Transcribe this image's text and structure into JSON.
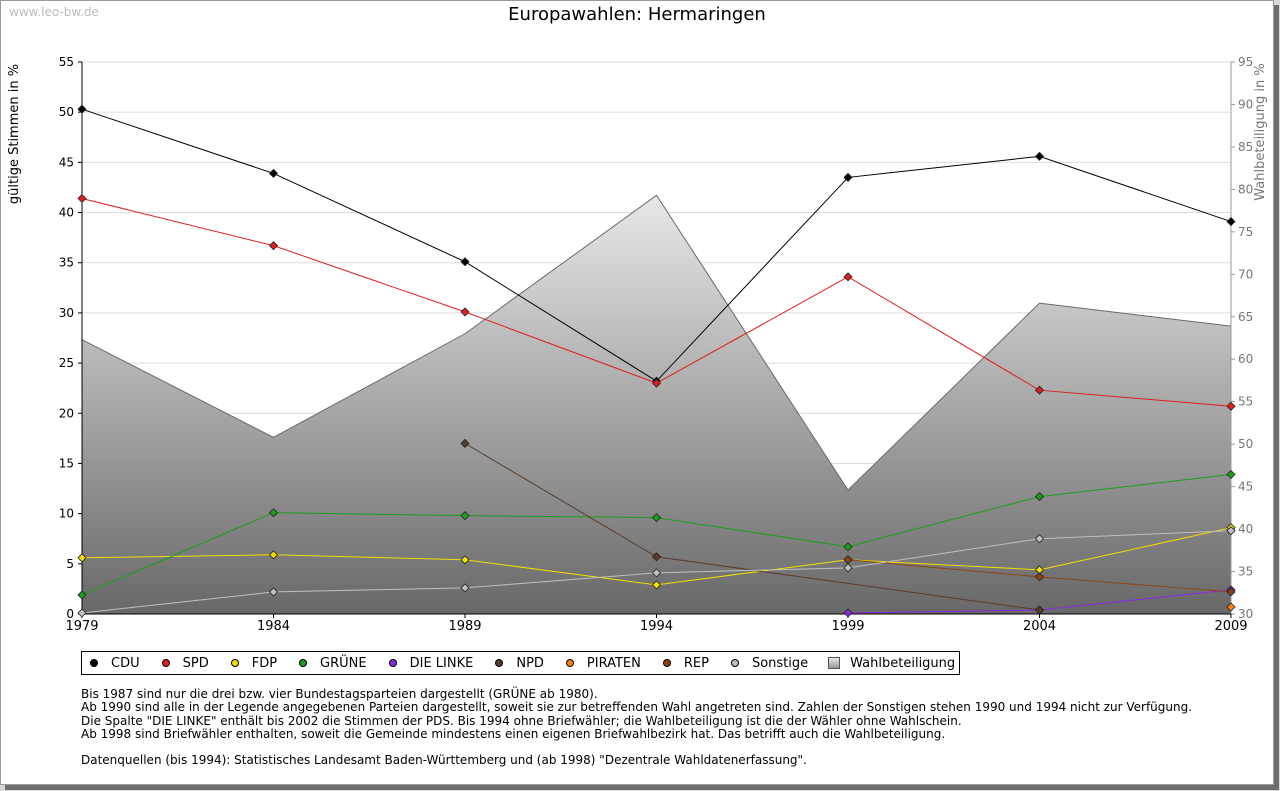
{
  "watermark": "www.leo-bw.de",
  "chart_data": {
    "type": "line",
    "title": "Europawahlen: Hermaringen",
    "ylabel": "gültige Stimmen in %",
    "y2label": "Wahlbeteiligung in %",
    "xlabel": "",
    "x": [
      1979,
      1984,
      1989,
      1994,
      1999,
      2004,
      2009
    ],
    "ylim": [
      0,
      55
    ],
    "y2lim": [
      30,
      95
    ],
    "yticks": [
      0,
      5,
      10,
      15,
      20,
      25,
      30,
      35,
      40,
      45,
      50,
      55
    ],
    "y2ticks": [
      30,
      35,
      40,
      45,
      50,
      55,
      60,
      65,
      70,
      75,
      80,
      85,
      90,
      95
    ],
    "grid": true,
    "legend_position": "bottom",
    "series": [
      {
        "name": "CDU",
        "color": "#000000",
        "values": [
          50.3,
          43.9,
          35.1,
          23.2,
          43.5,
          45.6,
          39.1
        ]
      },
      {
        "name": "SPD",
        "color": "#e11d1d",
        "values": [
          41.4,
          36.7,
          30.1,
          23.0,
          33.6,
          22.3,
          20.7
        ]
      },
      {
        "name": "FDP",
        "color": "#f0e000",
        "values": [
          5.6,
          5.9,
          5.4,
          2.9,
          5.4,
          4.4,
          8.6
        ]
      },
      {
        "name": "GRÜNE",
        "color": "#1a9e1a",
        "values": [
          1.9,
          10.1,
          9.8,
          9.6,
          6.7,
          11.7,
          13.9
        ]
      },
      {
        "name": "DIE LINKE",
        "color": "#8a2be2",
        "values": [
          null,
          null,
          null,
          null,
          0.1,
          0.4,
          2.4
        ]
      },
      {
        "name": "NPD",
        "color": "#5a3a2a",
        "values": [
          null,
          null,
          17.0,
          5.7,
          null,
          0.4,
          null
        ]
      },
      {
        "name": "PIRATEN",
        "color": "#ff7f0e",
        "values": [
          null,
          null,
          null,
          null,
          null,
          null,
          0.7
        ]
      },
      {
        "name": "REP",
        "color": "#8b4513",
        "values": [
          null,
          null,
          null,
          null,
          5.4,
          3.7,
          2.2
        ]
      },
      {
        "name": "Sonstige",
        "color": "#c0c0c0",
        "values": [
          0.1,
          2.2,
          2.6,
          4.1,
          4.6,
          7.5,
          8.3
        ]
      }
    ],
    "area": {
      "name": "Wahlbeteiligung",
      "axis": "right",
      "values": [
        62.3,
        50.8,
        63.0,
        79.3,
        44.6,
        66.6,
        63.9
      ]
    }
  },
  "notes": [
    "Bis 1987 sind nur die drei bzw. vier Bundestagsparteien dargestellt (GRÜNE ab 1980).",
    "Ab 1990 sind alle in der Legende angegebenen Parteien dargestellt, soweit sie zur betreffenden Wahl angetreten sind. Zahlen der Sonstigen stehen 1990 und 1994 nicht zur Verfügung.",
    "Die Spalte \"DIE LINKE\" enthält bis 2002 die Stimmen der PDS. Bis 1994 ohne Briefwähler; die Wahlbeteiligung ist die der Wähler ohne Wahlschein.",
    "Ab 1998 sind Briefwähler enthalten, soweit die Gemeinde mindestens einen eigenen Briefwahlbezirk hat. Das betrifft auch die Wahlbeteiligung."
  ],
  "source": "Datenquellen (bis 1994): Statistisches Landesamt Baden-Württemberg und (ab 1998) \"Dezentrale Wahldatenerfassung\"."
}
